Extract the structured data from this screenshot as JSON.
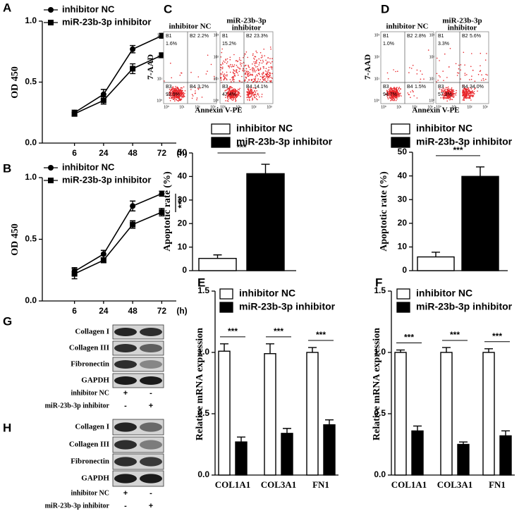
{
  "chart_data": [
    {
      "panel_label": "A",
      "type": "line",
      "ylabel": "OD 450",
      "categories": [
        "6",
        "24",
        "48",
        "72"
      ],
      "x_unit": "(h)",
      "series": [
        {
          "name": "inhibitor NC",
          "marker": "circle",
          "color": "#000000",
          "values": [
            0.25,
            0.4,
            0.77,
            0.88
          ],
          "errors": [
            0.02,
            0.04,
            0.03,
            0.02
          ]
        },
        {
          "name": "miR-23b-3p inhibitor",
          "marker": "square",
          "color": "#000000",
          "values": [
            0.24,
            0.35,
            0.61,
            0.72
          ],
          "errors": [
            0.02,
            0.03,
            0.04,
            0.02
          ]
        }
      ],
      "ylim": [
        0,
        1
      ],
      "yticks": [
        {
          "value": 0,
          "label": "0.0"
        },
        0.5,
        {
          "value": 1,
          "label": "1.0"
        }
      ],
      "annotation": "***"
    },
    {
      "panel_label": "B",
      "type": "line",
      "ylabel": "OD 450",
      "categories": [
        "6",
        "24",
        "48",
        "72"
      ],
      "x_unit": "(h)",
      "series": [
        {
          "name": "inhibitor NC",
          "marker": "circle",
          "color": "#000000",
          "values": [
            0.24,
            0.38,
            0.77,
            0.87
          ],
          "errors": [
            0.03,
            0.03,
            0.04,
            0.02
          ]
        },
        {
          "name": "miR-23b-3p inhibitor",
          "marker": "square",
          "color": "#000000",
          "values": [
            0.22,
            0.33,
            0.62,
            0.72
          ],
          "errors": [
            0.04,
            0.02,
            0.03,
            0.03
          ]
        }
      ],
      "ylim": [
        0,
        1
      ],
      "yticks": [
        {
          "value": 0,
          "label": "0.0"
        },
        0.5,
        {
          "value": 1,
          "label": "1.0"
        }
      ],
      "annotation": "***"
    },
    {
      "type": "bar",
      "ylabel": "Apoptotic rate (%)",
      "series": [
        {
          "name": "inhibitor NC",
          "color": "#ffffff",
          "values": [
            5.2
          ],
          "errors": [
            1.5
          ]
        },
        {
          "name": "miR-23b-3p inhibitor",
          "color": "#000000",
          "values": [
            41.2
          ],
          "errors": [
            4.0
          ]
        }
      ],
      "ylim": [
        0,
        50
      ],
      "yticks": [
        0,
        10,
        20,
        30,
        40,
        50
      ],
      "annotations": [
        "***"
      ]
    },
    {
      "type": "bar",
      "ylabel": "Apoptotic rate (%)",
      "series": [
        {
          "name": "inhibitor NC",
          "color": "#ffffff",
          "values": [
            5.8
          ],
          "errors": [
            2.0
          ]
        },
        {
          "name": "miR-23b-3p inhibitor",
          "color": "#000000",
          "values": [
            39.8
          ],
          "errors": [
            4.0
          ]
        }
      ],
      "ylim": [
        0,
        50
      ],
      "yticks": [
        0,
        10,
        20,
        30,
        40,
        50
      ],
      "annotations": [
        "***"
      ]
    },
    {
      "panel_label": "E",
      "type": "bar",
      "ylabel": "Relative mRNA expression",
      "categories": [
        "COL1A1",
        "COL3A1",
        "FN1"
      ],
      "series": [
        {
          "name": "inhibitor NC",
          "color": "#ffffff",
          "values": [
            1.01,
            0.99,
            1.0
          ],
          "errors": [
            0.06,
            0.08,
            0.04
          ]
        },
        {
          "name": "miR-23b-3p inhibitor",
          "color": "#000000",
          "values": [
            0.27,
            0.34,
            0.41
          ],
          "errors": [
            0.04,
            0.04,
            0.04
          ]
        }
      ],
      "ylim": [
        0,
        1.5
      ],
      "yticks": [
        {
          "value": 0,
          "label": "0.0"
        },
        0.5,
        {
          "value": 1,
          "label": "1.0"
        },
        1.5
      ],
      "annotations": [
        "***",
        "***",
        "***"
      ]
    },
    {
      "panel_label": "F",
      "type": "bar",
      "ylabel": "Relative mRNA expression",
      "categories": [
        "COL1A1",
        "COL3A1",
        "FN1"
      ],
      "series": [
        {
          "name": "inhibitor NC",
          "color": "#ffffff",
          "values": [
            1.0,
            1.0,
            1.0
          ],
          "errors": [
            0.02,
            0.04,
            0.03
          ]
        },
        {
          "name": "miR-23b-3p inhibitor",
          "color": "#000000",
          "values": [
            0.36,
            0.25,
            0.32
          ],
          "errors": [
            0.04,
            0.02,
            0.04
          ]
        }
      ],
      "ylim": [
        0,
        1.5
      ],
      "yticks": [
        {
          "value": 0,
          "label": "0.0"
        },
        0.5,
        {
          "value": 1,
          "label": "1.0"
        },
        1.5
      ],
      "annotations": [
        "***",
        "***",
        "***"
      ]
    }
  ],
  "flow_panels": [
    {
      "panel_label": "C",
      "y_axis": "7-AAD",
      "x_axis": "Annexin V-PE",
      "axis_ticks": [
        "10⁰",
        "10¹",
        "10²",
        "10³"
      ],
      "plots": [
        {
          "title": [
            "inhibitor NC"
          ],
          "quadrants": [
            {
              "name": "B1",
              "value": "1.6%"
            },
            {
              "name": "B2",
              "value": "2.2%"
            },
            {
              "name": "B3",
              "value": "92.9%"
            },
            {
              "name": "B4",
              "value": "3.2%"
            }
          ]
        },
        {
          "title": [
            "miR-23b-3p",
            "inhibitor"
          ],
          "quadrants": [
            {
              "name": "B1",
              "value": "15.2%"
            },
            {
              "name": "B2",
              "value": "23.3%"
            },
            {
              "name": "B3",
              "value": "47.4%"
            },
            {
              "name": "B4",
              "value": "14.1%"
            }
          ]
        }
      ]
    },
    {
      "panel_label": "D",
      "y_axis": "7-AAD",
      "x_axis": "Annexin V-PE",
      "axis_ticks": [
        "10⁰",
        "10¹",
        "10²",
        "10³"
      ],
      "plots": [
        {
          "title": [
            "inhibitor NC"
          ],
          "quadrants": [
            {
              "name": "B1",
              "value": "1.0%"
            },
            {
              "name": "B2",
              "value": "2.8%"
            },
            {
              "name": "B3",
              "value": "94.7%"
            },
            {
              "name": "B4",
              "value": "1.5%"
            }
          ]
        },
        {
          "title": [
            "miR-23b-3p",
            "inhibitor"
          ],
          "quadrants": [
            {
              "name": "B1",
              "value": "3.3%"
            },
            {
              "name": "B2",
              "value": "5.6%"
            },
            {
              "name": "B3",
              "value": "57.3%"
            },
            {
              "name": "B4",
              "value": "34.0%"
            }
          ]
        }
      ]
    }
  ],
  "blots": [
    {
      "panel_label": "G",
      "bands": [
        "Collagen I",
        "Collagen III",
        "Fibronectin",
        "GAPDH"
      ],
      "conditions": [
        {
          "name": "inhibitor NC",
          "signs": [
            "+",
            "-"
          ]
        },
        {
          "name": "miR-23b-3p inhibitor",
          "signs": [
            "-",
            "+"
          ]
        }
      ]
    },
    {
      "panel_label": "H",
      "bands": [
        "Collagen I",
        "Collagen III",
        "Fibronectin",
        "GAPDH"
      ],
      "conditions": [
        {
          "name": "inhibitor NC",
          "signs": [
            "+",
            "-"
          ]
        },
        {
          "name": "miR-23b-3p inhibitor",
          "signs": [
            "-",
            "+"
          ]
        }
      ]
    }
  ]
}
